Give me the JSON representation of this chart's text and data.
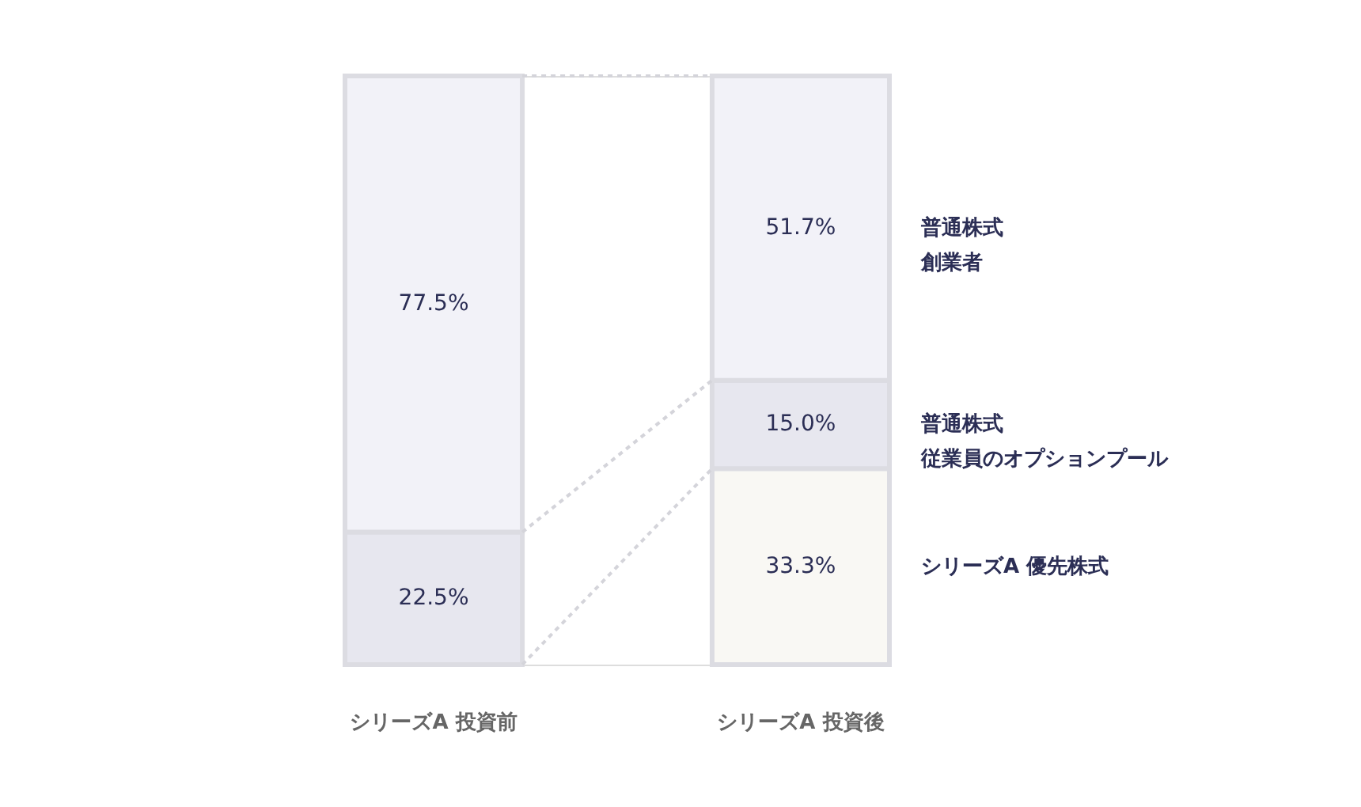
{
  "chart_data": {
    "type": "bar",
    "stacked": true,
    "categories": [
      "シリーズA 投資前",
      "シリーズA 投資後"
    ],
    "series": [
      {
        "name": "シリーズA 優先株式",
        "color": "#f9f8f4",
        "values": [
          null,
          33.3
        ],
        "value_labels": [
          null,
          "33.3%"
        ]
      },
      {
        "name": "普通株式従業員のオプションプール",
        "color": "#e7e7ef",
        "values": [
          22.5,
          15.0
        ],
        "value_labels": [
          "22.5%",
          "15.0%"
        ]
      },
      {
        "name": "普通株式創業者",
        "color": "#f2f2f8",
        "values": [
          77.5,
          51.7
        ],
        "value_labels": [
          "77.5%",
          "51.7%"
        ]
      }
    ]
  }
}
